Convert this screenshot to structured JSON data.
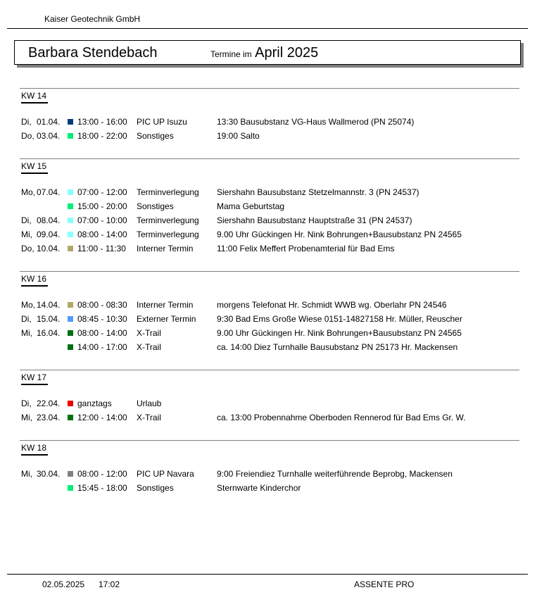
{
  "header": {
    "company": "Kaiser Geotechnik GmbH",
    "person": "Barbara Stendebach",
    "subtitle_prefix": "Termine im",
    "month": "April 2025"
  },
  "weeks": [
    {
      "label": "KW 14",
      "entries": [
        {
          "day": "Di,",
          "date": "01.04.",
          "color": "#003d7a",
          "time": "13:00 - 16:00",
          "type": "PIC UP Isuzu",
          "desc": "13:30 Bausubstanz VG-Haus Wallmerod (PN 25074)"
        },
        {
          "day": "Do,",
          "date": "03.04.",
          "color": "#00ee7a",
          "time": "18:00 - 22:00",
          "type": "Sonstiges",
          "desc": "19:00 Salto"
        }
      ]
    },
    {
      "label": "KW 15",
      "entries": [
        {
          "day": "Mo,",
          "date": "07.04.",
          "color": "#88ffff",
          "time": "07:00 - 12:00",
          "type": "Terminverlegung",
          "desc": "Siershahn Bausubstanz Stetzelmannstr. 3 (PN 24537)"
        },
        {
          "day": "",
          "date": "",
          "color": "#00ee7a",
          "time": "15:00 - 20:00",
          "type": "Sonstiges",
          "desc": "Mama Geburtstag"
        },
        {
          "day": "Di,",
          "date": "08.04.",
          "color": "#88ffff",
          "time": "07:00 - 10:00",
          "type": "Terminverlegung",
          "desc": "Siershahn Bausubstanz Hauptstraße 31 (PN 24537)"
        },
        {
          "day": "Mi,",
          "date": "09.04.",
          "color": "#88ffff",
          "time": "08:00 - 14:00",
          "type": "Terminverlegung",
          "desc": "9.00 Uhr Gückingen Hr. Nink Bohrungen+Bausubstanz PN 24565"
        },
        {
          "day": "Do,",
          "date": "10.04.",
          "color": "#b0a868",
          "time": "11:00 - 11:30",
          "type": "Interner Termin",
          "desc": "11:00 Felix Meffert Probenamterial für Bad Ems"
        }
      ]
    },
    {
      "label": "KW 16",
      "entries": [
        {
          "day": "Mo,",
          "date": "14.04.",
          "color": "#b0a868",
          "time": "08:00 - 08:30",
          "type": "Interner Termin",
          "desc": "morgens Telefonat Hr. Schmidt WWB wg. Oberlahr PN 24546"
        },
        {
          "day": "Di,",
          "date": "15.04.",
          "color": "#5599ff",
          "time": "08:45 - 10:30",
          "type": "Externer Termin",
          "desc": "9:30 Bad Ems Große Wiese 0151-14827158 Hr. Müller, Reuscher"
        },
        {
          "day": "Mi,",
          "date": "16.04.",
          "color": "#007010",
          "time": "08:00 - 14:00",
          "type": "X-Trail",
          "desc": "9.00 Uhr Gückingen Hr. Nink Bohrungen+Bausubstanz PN 24565"
        },
        {
          "day": "",
          "date": "",
          "color": "#007010",
          "time": "14:00 - 17:00",
          "type": "X-Trail",
          "desc": "ca. 14:00 Diez Turnhalle Bausubstanz PN 25173 Hr. Mackensen"
        }
      ]
    },
    {
      "label": "KW 17",
      "entries": [
        {
          "day": "Di,",
          "date": "22.04.",
          "color": "#ee0000",
          "time": "ganztags",
          "type": "Urlaub",
          "desc": ""
        },
        {
          "day": "Mi,",
          "date": "23.04.",
          "color": "#007010",
          "time": "12:00 - 14:00",
          "type": "X-Trail",
          "desc": "ca. 13:00 Probennahme Oberboden Rennerod für Bad Ems Gr. W."
        }
      ]
    },
    {
      "label": "KW 18",
      "entries": [
        {
          "day": "Mi,",
          "date": "30.04.",
          "color": "#808080",
          "time": "08:00 - 12:00",
          "type": "PIC UP Navara",
          "desc": "9:00 Freiendiez Turnhalle weiterführende Beprobg, Mackensen"
        },
        {
          "day": "",
          "date": "",
          "color": "#00ee7a",
          "time": "15:45 - 18:00",
          "type": "Sonstiges",
          "desc": "Sternwarte Kinderchor"
        }
      ]
    }
  ],
  "footer": {
    "date": "02.05.2025",
    "time": "17:02",
    "app": "ASSENTE PRO"
  }
}
